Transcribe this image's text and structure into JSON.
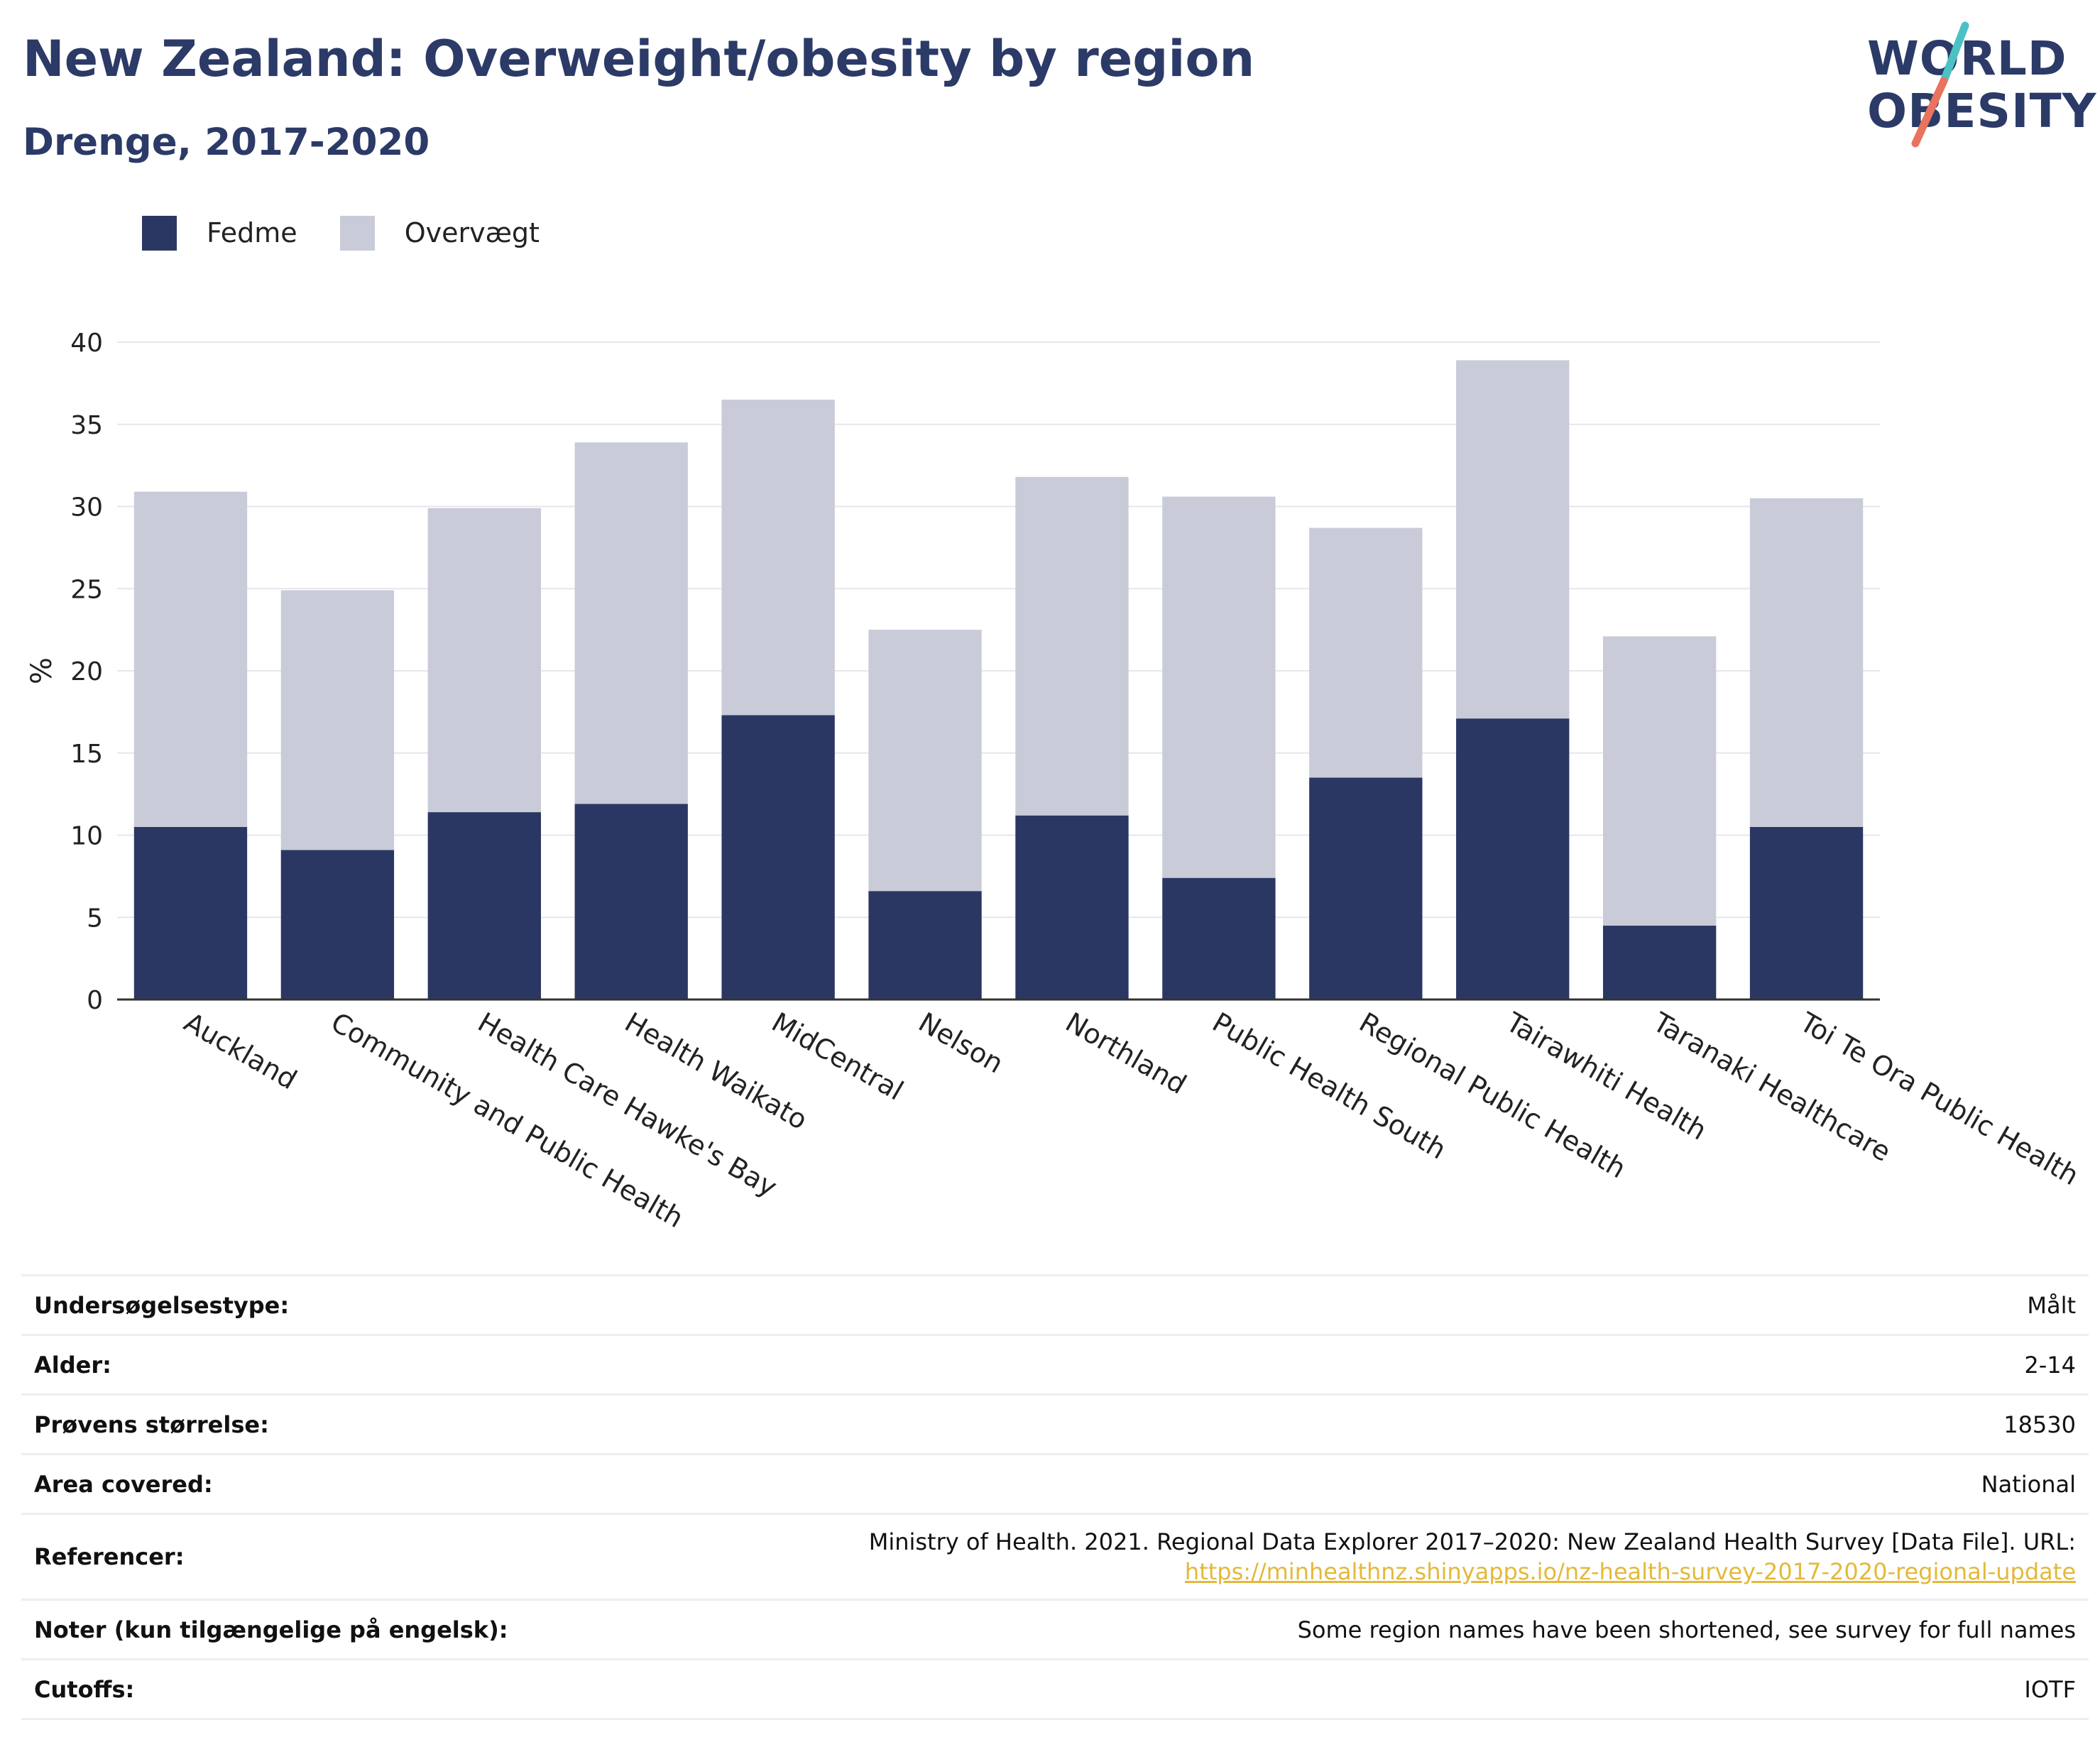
{
  "title": "New Zealand: Overweight/obesity by region",
  "subtitle": "Drenge, 2017-2020",
  "logo": {
    "line1": "WORLD",
    "line2": "OBESITY",
    "accent_teal": "#4cc1c5",
    "accent_coral": "#e8735e"
  },
  "colors": {
    "obesity": "#2b3763",
    "overweight": "#c9cbd8",
    "title": "#2b3a67",
    "link": "#e3b93a"
  },
  "chart_data": {
    "type": "bar",
    "stacked": true,
    "categories": [
      "Auckland",
      "Community and Public Health",
      "Health Care Hawke's Bay",
      "Health Waikato",
      "MidCentral",
      "Nelson",
      "Northland",
      "Public Health South",
      "Regional Public Health",
      "Tairawhiti Health",
      "Taranaki Healthcare",
      "Toi Te Ora Public Health"
    ],
    "series": [
      {
        "name": "Fedme",
        "values": [
          10.5,
          9.1,
          11.4,
          11.9,
          17.3,
          6.6,
          11.2,
          7.4,
          13.5,
          17.1,
          4.5,
          10.5
        ]
      },
      {
        "name": "Overvægt",
        "values": [
          20.4,
          15.8,
          18.5,
          22.0,
          19.2,
          15.9,
          20.6,
          23.2,
          15.2,
          21.8,
          17.6,
          20.0
        ]
      }
    ],
    "ylabel": "%",
    "ylim": [
      0,
      40
    ],
    "yticks": [
      0,
      5,
      10,
      15,
      20,
      25,
      30,
      35,
      40
    ],
    "grid": true,
    "legend_position": "top-left"
  },
  "info": [
    {
      "label": "Undersøgelsestype:",
      "value": "Målt"
    },
    {
      "label": "Alder:",
      "value": "2-14"
    },
    {
      "label": "Prøvens størrelse:",
      "value": "18530"
    },
    {
      "label": "Area covered:",
      "value": "National"
    },
    {
      "label": "Referencer:",
      "value": "Ministry of Health. 2021. Regional Data Explorer 2017–2020: New Zealand Health Survey [Data File]. URL:",
      "link": "https://minhealthnz.shinyapps.io/nz-health-survey-2017-2020-regional-update"
    },
    {
      "label": "Noter (kun tilgængelige på engelsk):",
      "value": "Some region names have been shortened, see survey for full names"
    },
    {
      "label": "Cutoffs:",
      "value": "IOTF"
    }
  ]
}
